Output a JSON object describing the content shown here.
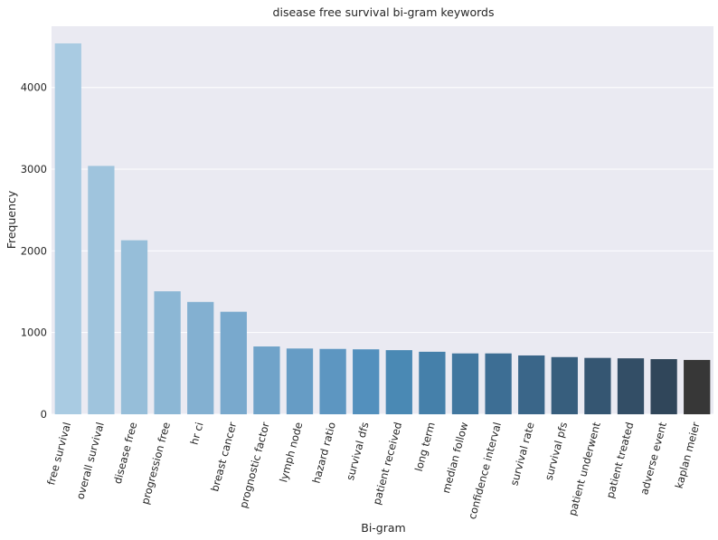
{
  "chart_data": {
    "type": "bar",
    "title": "disease free survival bi-gram keywords",
    "xlabel": "Bi-gram",
    "ylabel": "Frequency",
    "ylim": [
      0,
      4750
    ],
    "yticks": [
      0,
      1000,
      2000,
      3000,
      4000
    ],
    "grid": true,
    "categories": [
      "free survival",
      "overall survival",
      "disease free",
      "progression free",
      "hr ci",
      "breast cancer",
      "prognostic factor",
      "lymph node",
      "hazard ratio",
      "survival dfs",
      "patient received",
      "long term",
      "median follow",
      "confidence interval",
      "survival rate",
      "survival pfs",
      "patient underwent",
      "patient treated",
      "adverse event",
      "kaplan meier"
    ],
    "values": [
      4540,
      3040,
      2130,
      1505,
      1375,
      1255,
      830,
      805,
      800,
      795,
      785,
      765,
      745,
      745,
      720,
      700,
      690,
      685,
      675,
      665
    ],
    "colors": [
      "#a9cbe2",
      "#9fc4dd",
      "#96bed9",
      "#8cb7d5",
      "#83b0d1",
      "#79a9cd",
      "#70a3c9",
      "#669cc5",
      "#5d96c1",
      "#5390bd",
      "#4a89b4",
      "#4580aa",
      "#41779f",
      "#3d6e94",
      "#3a6689",
      "#375e7d",
      "#355672",
      "#334e66",
      "#30465a",
      "#373737"
    ],
    "background": "#eaeaf2",
    "grid_color": "#ffffff"
  }
}
